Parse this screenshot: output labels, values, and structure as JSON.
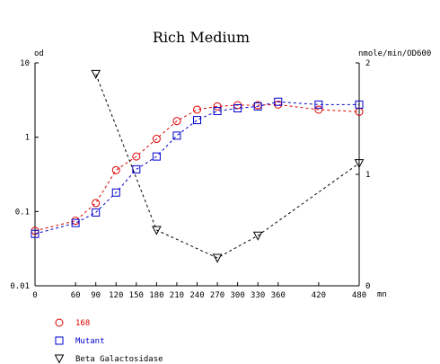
{
  "chart_data": {
    "type": "line",
    "title": "Rich Medium",
    "y_left_label": "od",
    "y_right_label": "nmole/min/OD600",
    "x_unit_label": "mn",
    "x_ticks": [
      0,
      60,
      90,
      120,
      150,
      180,
      210,
      240,
      270,
      300,
      330,
      360,
      420,
      480
    ],
    "x_range": [
      0,
      480
    ],
    "y_left_scale": "log",
    "y_left_range": [
      0.01,
      10
    ],
    "y_left_ticks": [
      {
        "v": 0.01,
        "label": "0.01"
      },
      {
        "v": 0.1,
        "label": "0.1"
      },
      {
        "v": 1,
        "label": "1"
      },
      {
        "v": 10,
        "label": "10"
      }
    ],
    "y_right_scale": "linear",
    "y_right_range": [
      0,
      2
    ],
    "y_right_ticks": [
      {
        "v": 0,
        "label": "0"
      },
      {
        "v": 1,
        "label": "1"
      },
      {
        "v": 2,
        "label": "2"
      }
    ],
    "grid": false,
    "legend_position": "bottom-left",
    "series": [
      {
        "name": "168",
        "axis": "left",
        "color": "#dd0000",
        "marker": "circle",
        "x": [
          0,
          60,
          90,
          120,
          150,
          180,
          210,
          240,
          270,
          300,
          330,
          360,
          420,
          480
        ],
        "y": [
          0.055,
          0.075,
          0.13,
          0.36,
          0.55,
          0.95,
          1.65,
          2.35,
          2.6,
          2.7,
          2.7,
          2.75,
          2.35,
          2.2
        ]
      },
      {
        "name": "Mutant",
        "axis": "left",
        "color": "#0000cc",
        "marker": "square",
        "x": [
          0,
          60,
          90,
          120,
          150,
          180,
          210,
          240,
          270,
          300,
          330,
          360,
          420,
          480
        ],
        "y": [
          0.05,
          0.07,
          0.097,
          0.18,
          0.37,
          0.55,
          1.05,
          1.7,
          2.25,
          2.45,
          2.6,
          3.0,
          2.75,
          2.75
        ]
      },
      {
        "name": "Beta Galactosidase",
        "axis": "right",
        "color": "#000000",
        "marker": "triangle-down",
        "x": [
          90,
          180,
          270,
          330,
          480
        ],
        "y": [
          1.9,
          0.5,
          0.25,
          0.45,
          1.1
        ]
      }
    ]
  }
}
